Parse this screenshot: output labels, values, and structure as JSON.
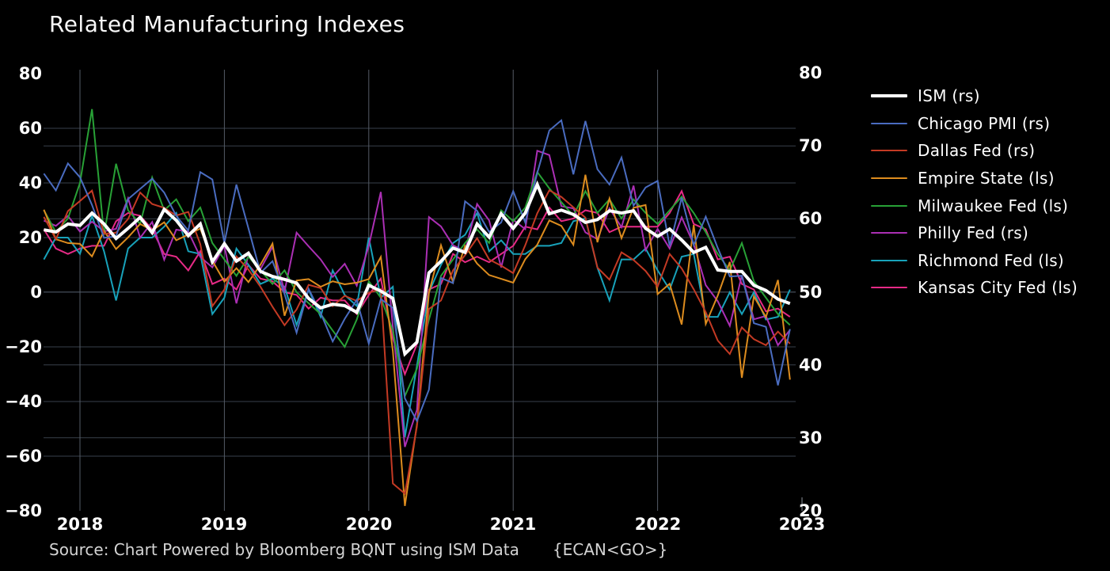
{
  "title": "Related Manufacturing Indexes",
  "source": {
    "text": "Source: Chart Powered by Bloomberg BQNT using ISM Data",
    "terminal_code": "{ECAN<GO>}"
  },
  "colors": {
    "background": "#000000",
    "grid_horizontal": "#39414b",
    "grid_vertical": "#555c66",
    "axis_text": "#ffffff",
    "title_text": "#f8f8f8",
    "source_text": "#d4d4d4",
    "end_tick": "#8a9098"
  },
  "chart_data": {
    "type": "line",
    "title": "Related Manufacturing Indexes",
    "frequency": "monthly",
    "x_start": "2017-10",
    "x_end": "2022-12",
    "grid": true,
    "legend_position": "right",
    "left_axis": {
      "tick_labels": [
        "80",
        "60",
        "40",
        "20",
        "0",
        "−20",
        "−40",
        "−60",
        "−80"
      ],
      "tick_values": [
        80,
        60,
        40,
        20,
        0,
        -20,
        -40,
        -60,
        -80
      ],
      "range": [
        -80,
        80
      ]
    },
    "right_axis": {
      "tick_labels": [
        "80",
        "70",
        "60",
        "50",
        "40",
        "30",
        "20"
      ],
      "tick_values": [
        80,
        70,
        60,
        50,
        40,
        30,
        20
      ],
      "range": [
        20,
        80
      ]
    },
    "x_axis": {
      "tick_labels": [
        "2018",
        "2019",
        "2020",
        "2021",
        "2022",
        "2023"
      ],
      "month_index": [
        3,
        15,
        27,
        39,
        51,
        63
      ]
    },
    "series": [
      {
        "name": "ism",
        "label": "ISM (rs)",
        "color": "#ffffff",
        "plot_axis": "right",
        "line_width": 4,
        "values": [
          58.5,
          58.2,
          59.3,
          59.1,
          60.8,
          59.3,
          57.3,
          58.7,
          60.2,
          58.1,
          61.3,
          59.8,
          57.7,
          59.3,
          54.1,
          56.6,
          54.2,
          55.3,
          52.8,
          52.1,
          51.7,
          51.2,
          49.1,
          47.8,
          48.3,
          48.1,
          47.2,
          50.9,
          50.1,
          49.1,
          41.5,
          43.1,
          52.6,
          54.2,
          56.0,
          55.4,
          59.3,
          57.5,
          60.7,
          58.7,
          60.8,
          64.7,
          60.7,
          61.2,
          60.6,
          59.5,
          59.9,
          61.1,
          60.8,
          61.1,
          58.7,
          57.6,
          58.6,
          57.1,
          55.4,
          56.1,
          53.0,
          52.8,
          52.8,
          50.9,
          50.2,
          49.0,
          48.4
        ]
      },
      {
        "name": "chicago-pmi",
        "label": "Chicago PMI (rs)",
        "color": "#4a6cc0",
        "plot_axis": "right",
        "line_width": 2,
        "values": [
          66.2,
          63.9,
          67.6,
          65.7,
          61.9,
          57.4,
          57.6,
          62.7,
          64.1,
          65.5,
          63.6,
          60.4,
          58.4,
          66.4,
          65.4,
          56.7,
          64.7,
          58.7,
          52.6,
          54.2,
          49.7,
          44.4,
          50.4,
          47.1,
          43.2,
          46.3,
          48.9,
          42.9,
          49.0,
          47.8,
          35.4,
          32.3,
          36.6,
          51.9,
          51.2,
          62.4,
          61.1,
          58.2,
          59.5,
          63.8,
          59.5,
          66.3,
          72.1,
          73.5,
          66.1,
          73.4,
          66.8,
          64.7,
          68.4,
          61.8,
          64.3,
          65.2,
          56.3,
          62.9,
          56.4,
          60.3,
          56.0,
          52.1,
          52.2,
          45.7,
          45.2,
          37.2,
          44.9
        ]
      },
      {
        "name": "dallas-fed",
        "label": "Dallas Fed (rs)",
        "color": "#c43a24",
        "plot_axis": "left",
        "line_width": 2,
        "values": [
          27.6,
          19.4,
          29.7,
          33.4,
          37.2,
          21.4,
          21.8,
          26.8,
          36.5,
          32.3,
          30.9,
          28.1,
          29.4,
          17.6,
          -5.1,
          1.0,
          13.1,
          8.3,
          2.0,
          -5.3,
          -12.1,
          -6.3,
          2.7,
          1.5,
          -5.1,
          -1.3,
          -3.2,
          -0.2,
          1.2,
          -70.0,
          -73.7,
          -49.2,
          -6.1,
          -3.0,
          8.0,
          13.6,
          19.8,
          12.0,
          9.7,
          7.0,
          17.2,
          28.9,
          37.3,
          34.9,
          31.1,
          27.3,
          9.0,
          4.6,
          14.6,
          11.8,
          7.8,
          2.0,
          14.0,
          8.7,
          1.1,
          -7.3,
          -17.7,
          -22.6,
          -12.9,
          -17.2,
          -19.4,
          -14.4,
          -18.8
        ]
      },
      {
        "name": "empire-state",
        "label": "Empire State (ls)",
        "color": "#dd8c1e",
        "plot_axis": "left",
        "line_width": 2,
        "values": [
          30.2,
          19.4,
          18.0,
          17.7,
          13.1,
          22.5,
          15.8,
          20.1,
          25.0,
          22.6,
          25.6,
          19.0,
          21.1,
          23.3,
          11.5,
          3.9,
          8.8,
          3.7,
          10.1,
          17.8,
          -8.6,
          4.3,
          4.8,
          2.0,
          4.0,
          2.9,
          3.5,
          4.8,
          12.9,
          -21.5,
          -78.2,
          -48.5,
          -0.2,
          17.2,
          3.7,
          17.0,
          10.5,
          6.3,
          4.9,
          3.5,
          12.1,
          17.4,
          26.3,
          24.3,
          17.4,
          43.0,
          18.3,
          34.3,
          19.8,
          30.9,
          31.9,
          -0.7,
          3.1,
          -11.8,
          24.6,
          -11.6,
          -1.2,
          11.1,
          -31.3,
          -1.5,
          -9.1,
          4.5,
          -32.0
        ]
      },
      {
        "name": "milwaukee-fed",
        "label": "Milwaukee Fed (ls)",
        "color": "#28a136",
        "plot_axis": "left",
        "line_width": 2,
        "values": [
          30,
          22,
          27,
          40,
          67,
          21,
          47,
          30,
          25,
          42,
          30,
          34,
          26,
          31,
          18,
          12,
          6,
          13,
          8,
          3,
          8,
          0,
          -4,
          -8,
          -14,
          -20,
          -10,
          4,
          -2,
          -14,
          -38,
          -28,
          -10,
          6,
          12,
          18,
          23,
          18,
          30,
          26,
          31,
          44,
          38,
          33,
          28,
          37,
          29,
          34,
          27,
          34,
          29,
          25,
          30,
          35,
          29,
          22,
          14,
          8,
          18,
          4,
          -2,
          -8,
          -12
        ]
      },
      {
        "name": "philly-fed",
        "label": "Philly Fed (rs)",
        "color": "#ab2fb4",
        "plot_axis": "left",
        "line_width": 2,
        "values": [
          26.2,
          24.3,
          27.9,
          22.2,
          25.8,
          22.3,
          23.2,
          34.4,
          19.9,
          25.7,
          11.9,
          22.9,
          22.2,
          12.9,
          9.1,
          17.0,
          -4.1,
          13.7,
          8.5,
          16.6,
          0.3,
          21.8,
          16.8,
          12.0,
          5.6,
          10.4,
          2.4,
          17.0,
          36.7,
          -12.7,
          -56.6,
          -43.1,
          27.5,
          24.1,
          17.2,
          15.0,
          32.3,
          26.3,
          9.1,
          26.5,
          23.1,
          51.8,
          50.2,
          31.5,
          30.7,
          21.9,
          19.4,
          30.7,
          23.8,
          39.0,
          15.4,
          23.2,
          16.0,
          27.4,
          17.6,
          2.6,
          -3.3,
          -12.3,
          6.2,
          -9.9,
          -8.7,
          -19.4,
          -13.8
        ]
      },
      {
        "name": "richmond-fed",
        "label": "Richmond Fed (ls)",
        "color": "#18a2ba",
        "plot_axis": "left",
        "line_width": 2,
        "values": [
          12,
          20,
          20,
          14,
          28,
          15,
          -3,
          16,
          20,
          20,
          24,
          29,
          15,
          14,
          -8,
          -2,
          16,
          10,
          3,
          5,
          2,
          -12,
          1,
          -9,
          8,
          -1,
          -5,
          20,
          -2,
          2,
          -53,
          -27,
          0,
          10,
          18,
          21,
          29,
          15,
          19,
          14,
          14,
          17,
          17,
          18,
          26,
          27,
          9,
          -3,
          12,
          12,
          16,
          8,
          1,
          13,
          14,
          -9,
          -9,
          0,
          -8,
          0,
          -10,
          -9,
          1
        ]
      },
      {
        "name": "kansas-city-fed",
        "label": "Kansas City Fed (ls)",
        "color": "#e62a86",
        "plot_axis": "left",
        "line_width": 2,
        "values": [
          23,
          16,
          14,
          16,
          17,
          17,
          26,
          29,
          28,
          23,
          14,
          13,
          8,
          15,
          3,
          5,
          1,
          10,
          5,
          4,
          0,
          -1,
          -6,
          -2,
          -3,
          -3,
          -8,
          -1,
          5,
          -17,
          -30,
          -19,
          1,
          3,
          14,
          11,
          13,
          11,
          14,
          17,
          24,
          23,
          31,
          26,
          27,
          30,
          29,
          22,
          24,
          24,
          24,
          24,
          29,
          37,
          25,
          23,
          12,
          13,
          3,
          1,
          -7,
          -6,
          -9
        ]
      }
    ]
  }
}
